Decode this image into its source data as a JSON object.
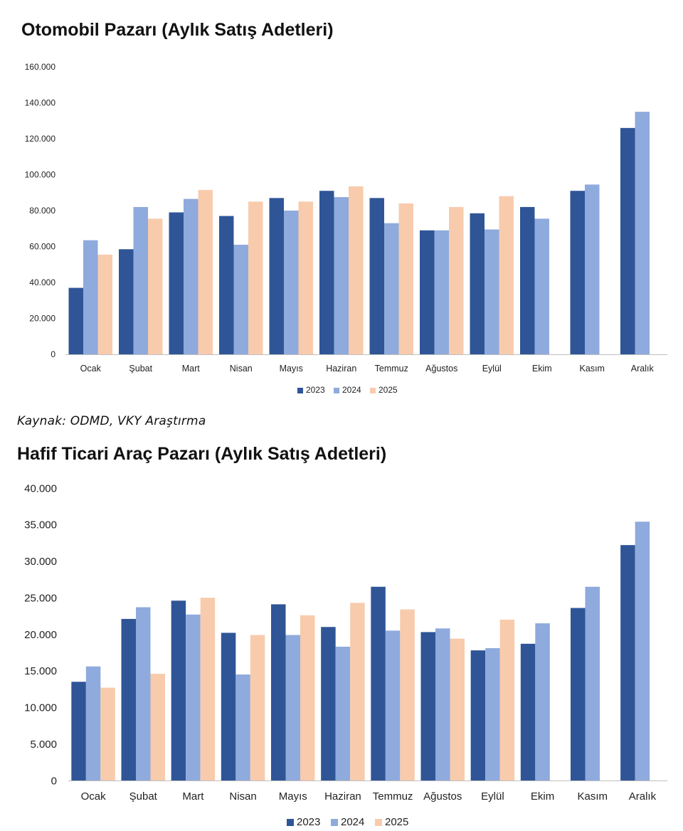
{
  "chart_data": [
    {
      "type": "bar",
      "title": "Otomobil Pazarı (Aylık Satış Adetleri)",
      "categories": [
        "Ocak",
        "Şubat",
        "Mart",
        "Nisan",
        "Mayıs",
        "Haziran",
        "Temmuz",
        "Ağustos",
        "Eylül",
        "Ekim",
        "Kasım",
        "Aralık"
      ],
      "series": [
        {
          "name": "2023",
          "color": "#2f5597",
          "values": [
            37000,
            58500,
            79000,
            77000,
            87000,
            91000,
            87000,
            69000,
            78500,
            82000,
            91000,
            126000
          ]
        },
        {
          "name": "2024",
          "color": "#8faadc",
          "values": [
            63500,
            82000,
            86500,
            61000,
            80000,
            87500,
            73000,
            69000,
            69500,
            75500,
            94500,
            135000
          ]
        },
        {
          "name": "2025",
          "color": "#f8cbad",
          "values": [
            55500,
            75500,
            91500,
            85000,
            85000,
            93500,
            84000,
            82000,
            88000,
            null,
            null,
            null
          ]
        }
      ],
      "yticks": [
        "160.000",
        "140.000",
        "120.000",
        "100.000",
        "80.000",
        "60.000",
        "40.000",
        "20.000",
        "0"
      ],
      "ylim": [
        0,
        160000
      ],
      "xlabel": "",
      "ylabel": "",
      "legend": "bottom"
    },
    {
      "type": "bar",
      "title": "Hafif Ticari Araç Pazarı (Aylık Satış Adetleri)",
      "categories": [
        "Ocak",
        "Şubat",
        "Mart",
        "Nisan",
        "Mayıs",
        "Haziran",
        "Temmuz",
        "Ağustos",
        "Eylül",
        "Ekim",
        "Kasım",
        "Aralık"
      ],
      "series": [
        {
          "name": "2023",
          "color": "#2f5597",
          "values": [
            13500,
            22100,
            24600,
            20200,
            24100,
            21000,
            26500,
            20300,
            17800,
            18700,
            23600,
            32200
          ]
        },
        {
          "name": "2024",
          "color": "#8faadc",
          "values": [
            15600,
            23700,
            22700,
            14500,
            19900,
            18300,
            20500,
            20800,
            18100,
            21500,
            26500,
            35400
          ]
        },
        {
          "name": "2025",
          "color": "#f8cbad",
          "values": [
            12700,
            14600,
            25000,
            19900,
            22600,
            24300,
            23400,
            19400,
            22000,
            null,
            null,
            null
          ]
        }
      ],
      "yticks": [
        "40.000",
        "35.000",
        "30.000",
        "25.000",
        "20.000",
        "15.000",
        "10.000",
        "5.000",
        "0"
      ],
      "ylim": [
        0,
        40000
      ],
      "xlabel": "",
      "ylabel": "",
      "legend": "bottom"
    }
  ],
  "source_note": "Kaynak: ODMD, VKY Araştırma"
}
